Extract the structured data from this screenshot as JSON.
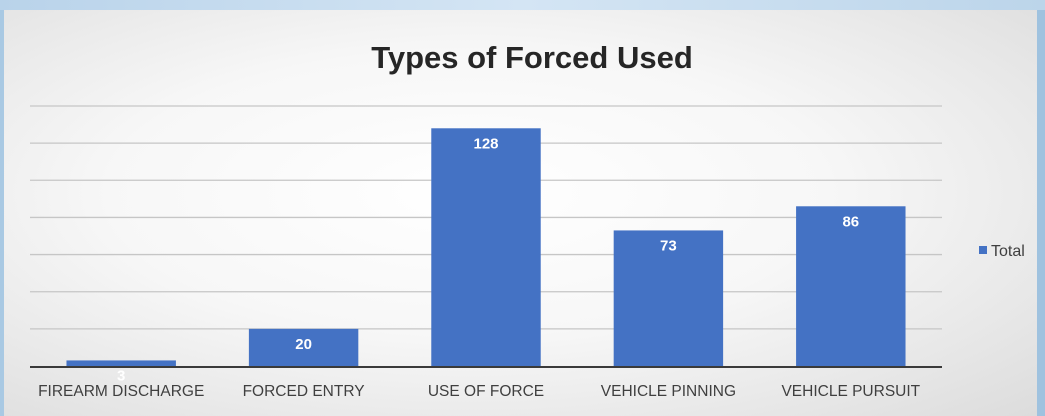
{
  "chart_data": {
    "type": "bar",
    "title": "Types of Forced Used",
    "categories": [
      "FIREARM DISCHARGE",
      "FORCED ENTRY",
      "USE OF FORCE",
      "VEHICLE PINNING",
      "VEHICLE PURSUIT"
    ],
    "series": [
      {
        "name": "Total",
        "values": [
          3,
          20,
          128,
          73,
          86
        ],
        "color": "#4472c4"
      }
    ],
    "ylim": [
      0,
      140
    ],
    "ytick_step": 20,
    "show_y_tick_labels": false,
    "grid": true,
    "data_labels": true,
    "legend_position": "right"
  }
}
